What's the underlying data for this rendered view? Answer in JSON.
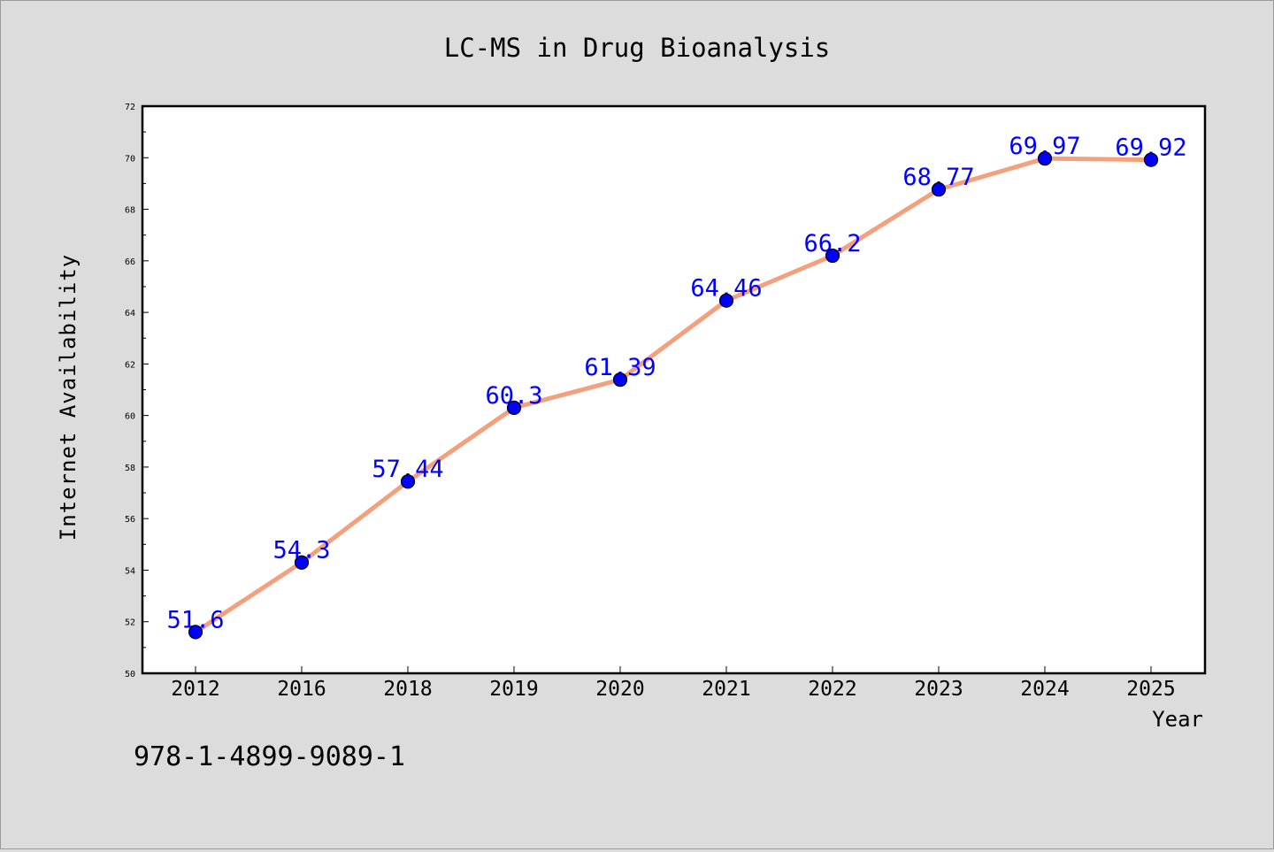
{
  "chart_data": {
    "type": "line",
    "title": "LC-MS in Drug Bioanalysis",
    "xlabel": "Year",
    "ylabel": "Internet Availability",
    "categories": [
      "2012",
      "2016",
      "2018",
      "2019",
      "2020",
      "2021",
      "2022",
      "2023",
      "2024",
      "2025"
    ],
    "series": [
      {
        "values": [
          51.6,
          54.3,
          57.44,
          60.3,
          61.39,
          64.46,
          66.2,
          68.77,
          69.97,
          69.92
        ]
      }
    ],
    "value_labels": [
      "51.6",
      "54.3",
      "57.44",
      "60.3",
      "61.39",
      "64.46",
      "66.2",
      "68.77",
      "69.97",
      "69.92"
    ],
    "ylim": [
      50,
      72
    ],
    "yticks": [
      50,
      52,
      54,
      56,
      58,
      60,
      62,
      64,
      66,
      68,
      70,
      72
    ],
    "grid": false,
    "line_color": "#f4a07c",
    "marker_color": "#0000ff",
    "label_color": "#0000ff"
  },
  "annotation": "978-1-4899-9089-1"
}
